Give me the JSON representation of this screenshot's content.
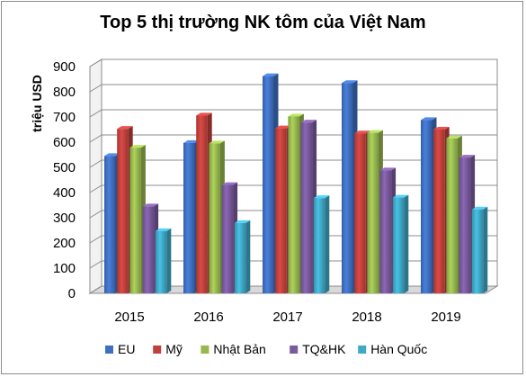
{
  "chart_data": {
    "type": "bar",
    "title": "Top 5 thị trường NK tôm của Việt Nam",
    "ylabel": "triệu USD",
    "xlabel": "",
    "ylim": [
      0,
      900
    ],
    "yticks": [
      0,
      100,
      200,
      300,
      400,
      500,
      600,
      700,
      800,
      900
    ],
    "categories": [
      "2015",
      "2016",
      "2017",
      "2018",
      "2019"
    ],
    "series": [
      {
        "name": "EU",
        "color": "#3f6fc0",
        "values": [
          545,
          597,
          862,
          835,
          688
        ]
      },
      {
        "name": "Mỹ",
        "color": "#c0403c",
        "values": [
          653,
          706,
          655,
          635,
          650
        ]
      },
      {
        "name": "Nhật Bản",
        "color": "#96b84e",
        "values": [
          578,
          595,
          702,
          637,
          615
        ]
      },
      {
        "name": "TQ&HK",
        "color": "#7a5a9e",
        "values": [
          345,
          430,
          678,
          488,
          539
        ]
      },
      {
        "name": "Hàn Quốc",
        "color": "#3fa9c8",
        "values": [
          247,
          279,
          378,
          380,
          333
        ]
      }
    ],
    "grid": true,
    "legend_position": "bottom",
    "style": "3d-column"
  }
}
